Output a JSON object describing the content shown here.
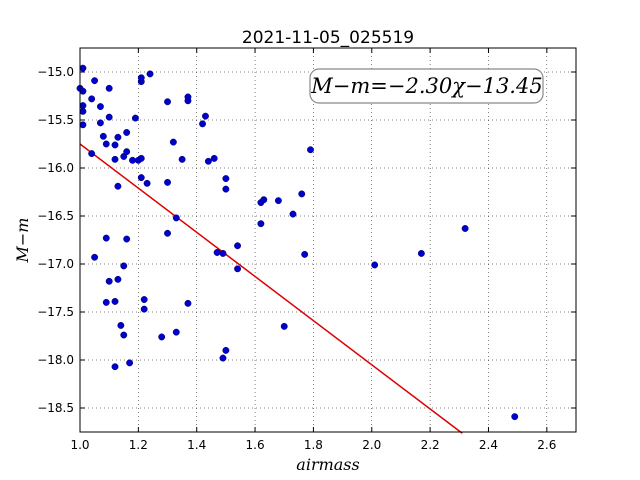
{
  "chart_data": {
    "type": "scatter",
    "title": "2021-11-05_025519",
    "xlabel": "airmass",
    "ylabel": "M−m",
    "xlim": [
      1.0,
      2.7
    ],
    "ylim": [
      -18.75,
      -14.75
    ],
    "x_ticks": [
      1.0,
      1.2,
      1.4,
      1.6,
      1.8,
      2.0,
      2.2,
      2.4,
      2.6
    ],
    "x_tick_labels": [
      "1.0",
      "1.2",
      "1.4",
      "1.6",
      "1.8",
      "2.0",
      "2.2",
      "2.4",
      "2.6"
    ],
    "y_ticks": [
      -15.0,
      -15.5,
      -16.0,
      -16.5,
      -17.0,
      -17.5,
      -18.0,
      -18.5
    ],
    "y_tick_labels": [
      "−15.0",
      "−15.5",
      "−16.0",
      "−16.5",
      "−17.0",
      "−17.5",
      "−18.0",
      "−18.5"
    ],
    "grid": true,
    "point_color": "#0000cc",
    "fit_color": "#dd0000",
    "annotation": "M−m=−2.30χ−13.45",
    "fit": {
      "slope": -2.3,
      "intercept": -13.45,
      "x_range": [
        1.0,
        2.31
      ]
    },
    "points": [
      [
        1.0,
        -15.17
      ],
      [
        1.01,
        -14.96
      ],
      [
        1.01,
        -15.2
      ],
      [
        1.01,
        -15.35
      ],
      [
        1.01,
        -15.41
      ],
      [
        1.01,
        -15.55
      ],
      [
        1.04,
        -15.28
      ],
      [
        1.05,
        -15.09
      ],
      [
        1.04,
        -15.85
      ],
      [
        1.05,
        -16.93
      ],
      [
        1.07,
        -15.53
      ],
      [
        1.07,
        -15.36
      ],
      [
        1.08,
        -15.67
      ],
      [
        1.09,
        -15.75
      ],
      [
        1.1,
        -15.47
      ],
      [
        1.1,
        -15.17
      ],
      [
        1.09,
        -16.73
      ],
      [
        1.09,
        -17.4
      ],
      [
        1.1,
        -17.18
      ],
      [
        1.12,
        -17.39
      ],
      [
        1.12,
        -15.91
      ],
      [
        1.12,
        -15.76
      ],
      [
        1.13,
        -15.68
      ],
      [
        1.13,
        -16.19
      ],
      [
        1.13,
        -17.16
      ],
      [
        1.14,
        -17.64
      ],
      [
        1.15,
        -17.74
      ],
      [
        1.12,
        -18.07
      ],
      [
        1.15,
        -15.88
      ],
      [
        1.16,
        -15.83
      ],
      [
        1.16,
        -15.63
      ],
      [
        1.16,
        -16.74
      ],
      [
        1.15,
        -17.02
      ],
      [
        1.17,
        -18.03
      ],
      [
        1.18,
        -15.92
      ],
      [
        1.19,
        -15.48
      ],
      [
        1.2,
        -15.92
      ],
      [
        1.21,
        -15.9
      ],
      [
        1.21,
        -15.1
      ],
      [
        1.21,
        -15.06
      ],
      [
        1.24,
        -15.02
      ],
      [
        1.21,
        -16.1
      ],
      [
        1.23,
        -16.16
      ],
      [
        1.22,
        -17.37
      ],
      [
        1.22,
        -17.47
      ],
      [
        1.28,
        -17.76
      ],
      [
        1.3,
        -15.31
      ],
      [
        1.32,
        -15.73
      ],
      [
        1.3,
        -16.15
      ],
      [
        1.3,
        -16.68
      ],
      [
        1.33,
        -16.52
      ],
      [
        1.35,
        -15.91
      ],
      [
        1.37,
        -15.26
      ],
      [
        1.37,
        -15.3
      ],
      [
        1.37,
        -17.41
      ],
      [
        1.33,
        -17.71
      ],
      [
        1.42,
        -15.54
      ],
      [
        1.43,
        -15.46
      ],
      [
        1.44,
        -15.93
      ],
      [
        1.46,
        -15.9
      ],
      [
        1.47,
        -16.88
      ],
      [
        1.49,
        -16.89
      ],
      [
        1.5,
        -16.11
      ],
      [
        1.5,
        -16.22
      ],
      [
        1.49,
        -17.98
      ],
      [
        1.5,
        -17.9
      ],
      [
        1.54,
        -16.81
      ],
      [
        1.54,
        -17.05
      ],
      [
        1.62,
        -16.36
      ],
      [
        1.63,
        -16.33
      ],
      [
        1.62,
        -16.58
      ],
      [
        1.68,
        -16.34
      ],
      [
        1.73,
        -16.48
      ],
      [
        1.76,
        -16.27
      ],
      [
        1.77,
        -16.9
      ],
      [
        1.7,
        -17.65
      ],
      [
        1.79,
        -15.81
      ],
      [
        2.01,
        -17.01
      ],
      [
        2.17,
        -16.89
      ],
      [
        2.32,
        -16.63
      ],
      [
        2.49,
        -18.59
      ]
    ]
  }
}
